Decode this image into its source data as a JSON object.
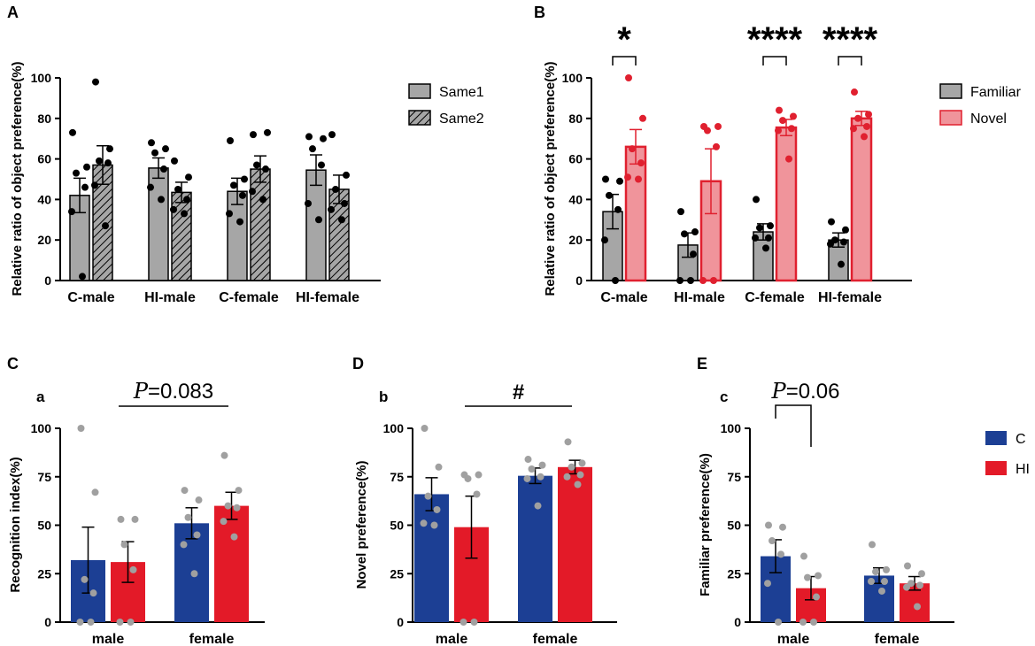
{
  "colors": {
    "grey": "#a6a6a6",
    "pink": "#f0949b",
    "pink_edge": "#e0202f",
    "pink_dot": "#e0202f",
    "blue": "#1c3f94",
    "red": "#e31a28",
    "dot_grey": "#a0a0a0",
    "black": "#000000"
  },
  "chart_data": [
    {
      "panel": "A",
      "type": "bar",
      "title": "",
      "ylabel": "Relative ratio of object preference(%)",
      "ylim": [
        0,
        100
      ],
      "yticks": [
        "0",
        "20",
        "40",
        "60",
        "80",
        "100"
      ],
      "categories": [
        "C-male",
        "HI-male",
        "C-female",
        "HI-female"
      ],
      "legend": {
        "position": "right",
        "entries": [
          "Same1",
          "Same2"
        ]
      },
      "series": [
        {
          "name": "Same1",
          "style": "grey",
          "values": [
            42,
            55.5,
            44,
            54.5
          ],
          "sem": [
            8.5,
            5,
            6.5,
            7.5
          ],
          "points": [
            [
              73,
              56,
              53,
              46,
              34,
              2
            ],
            [
              68,
              65,
              63,
              55,
              46,
              40
            ],
            [
              69,
              50,
              47,
              42,
              33,
              29
            ],
            [
              71,
              70,
              65,
              57,
              38,
              30
            ]
          ]
        },
        {
          "name": "Same2",
          "style": "hatched",
          "values": [
            57,
            43.5,
            55,
            45
          ],
          "sem": [
            9.5,
            5,
            6.5,
            7
          ],
          "points": [
            [
              98,
              65,
              59,
              58,
              47,
              27
            ],
            [
              59,
              51,
              45,
              40,
              35,
              33
            ],
            [
              72,
              73,
              57,
              55,
              44,
              40
            ],
            [
              72,
              52,
              45,
              38,
              35,
              30
            ]
          ]
        }
      ]
    },
    {
      "panel": "B",
      "type": "bar",
      "title": "",
      "ylabel": "Relative ratio of object preference(%)",
      "ylim": [
        0,
        100
      ],
      "yticks": [
        "0",
        "20",
        "40",
        "60",
        "80",
        "100"
      ],
      "categories": [
        "C-male",
        "HI-male",
        "C-female",
        "HI-female"
      ],
      "legend": {
        "position": "right",
        "entries": [
          "Familiar",
          "Novel"
        ]
      },
      "series": [
        {
          "name": "Familiar",
          "style": "grey",
          "values": [
            34,
            17.5,
            24,
            20
          ],
          "sem": [
            8.5,
            6,
            4,
            3.5
          ],
          "points": [
            [
              50,
              49,
              42,
              35,
              20,
              0
            ],
            [
              34,
              24,
              23,
              13,
              0,
              0
            ],
            [
              40,
              27,
              26,
              21,
              21,
              16
            ],
            [
              29,
              25,
              20,
              19,
              18,
              8
            ]
          ]
        },
        {
          "name": "Novel",
          "style": "pink",
          "values": [
            66,
            49,
            75.5,
            80
          ],
          "sem": [
            8.5,
            16,
            4,
            3.5
          ],
          "points": [
            [
              100,
              80,
              65,
              58,
              51,
              50
            ],
            [
              76,
              76,
              74,
              66,
              0,
              0
            ],
            [
              84,
              81,
              79,
              75,
              74,
              60
            ],
            [
              93,
              82,
              80,
              76,
              75,
              71
            ]
          ]
        }
      ],
      "significance": [
        {
          "category": "C-male",
          "label": "*"
        },
        {
          "category": "C-female",
          "label": "****"
        },
        {
          "category": "HI-female",
          "label": "****"
        }
      ]
    },
    {
      "panel": "C",
      "subpanel": "a",
      "type": "bar",
      "title": "",
      "ylabel": "Recognition index(%)",
      "ylim": [
        0,
        100
      ],
      "yticks": [
        "0",
        "25",
        "50",
        "75",
        "100"
      ],
      "categories": [
        "male",
        "female"
      ],
      "series": [
        {
          "name": "C",
          "style": "blue",
          "values": [
            32,
            51
          ],
          "sem": [
            17,
            8
          ],
          "points": [
            [
              100,
              67,
              22,
              15,
              0,
              0
            ],
            [
              68,
              63,
              54,
              45,
              40,
              25
            ]
          ]
        },
        {
          "name": "HI",
          "style": "red",
          "values": [
            31,
            60
          ],
          "sem": [
            10.5,
            7
          ],
          "points": [
            [
              53,
              53,
              40,
              27,
              0,
              0
            ],
            [
              86,
              68,
              60,
              59,
              52,
              44
            ]
          ]
        }
      ],
      "comparison": {
        "label": "P=0.083",
        "italic_prefix": "P",
        "value_text": "=0.083"
      }
    },
    {
      "panel": "D",
      "subpanel": "b",
      "type": "bar",
      "title": "",
      "ylabel": "Novel preference(%)",
      "ylim": [
        0,
        100
      ],
      "yticks": [
        "0",
        "25",
        "50",
        "75",
        "100"
      ],
      "categories": [
        "male",
        "female"
      ],
      "series": [
        {
          "name": "C",
          "style": "blue",
          "values": [
            66,
            75.5
          ],
          "sem": [
            8.5,
            4
          ],
          "points": [
            [
              100,
              80,
              65,
              58,
              51,
              50
            ],
            [
              84,
              81,
              79,
              75,
              74,
              60
            ]
          ]
        },
        {
          "name": "HI",
          "style": "red",
          "values": [
            49,
            80
          ],
          "sem": [
            16,
            3.5
          ],
          "points": [
            [
              76,
              76,
              74,
              66,
              0,
              0
            ],
            [
              93,
              82,
              80,
              76,
              75,
              71
            ]
          ]
        }
      ],
      "comparison": {
        "label": "#"
      }
    },
    {
      "panel": "E",
      "subpanel": "c",
      "type": "bar",
      "title": "",
      "ylabel": "Familiar preference(%)",
      "ylim": [
        0,
        100
      ],
      "yticks": [
        "0",
        "25",
        "50",
        "75",
        "100"
      ],
      "categories": [
        "male",
        "female"
      ],
      "legend": {
        "position": "right",
        "entries": [
          "C",
          "HI"
        ]
      },
      "series": [
        {
          "name": "C",
          "style": "blue",
          "values": [
            34,
            24
          ],
          "sem": [
            8.5,
            4
          ],
          "points": [
            [
              50,
              49,
              42,
              35,
              20,
              0
            ],
            [
              40,
              27,
              26,
              21,
              21,
              16
            ]
          ]
        },
        {
          "name": "HI",
          "style": "red",
          "values": [
            17.5,
            20
          ],
          "sem": [
            6,
            3.5
          ],
          "points": [
            [
              34,
              24,
              23,
              13,
              0,
              0
            ],
            [
              29,
              25,
              20,
              19,
              18,
              8
            ]
          ]
        }
      ],
      "comparison": {
        "label": "P=0.06",
        "italic_prefix": "P",
        "value_text": "=0.06"
      }
    }
  ]
}
